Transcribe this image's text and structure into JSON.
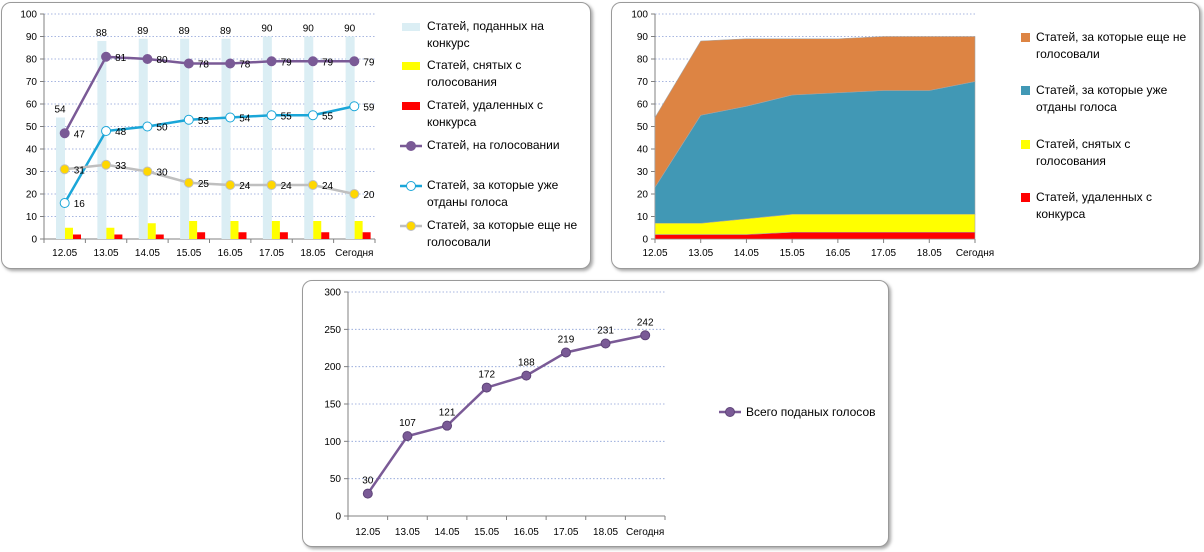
{
  "chart_data": [
    {
      "type": "bar",
      "categories": [
        "12.05",
        "13.05",
        "14.05",
        "15.05",
        "16.05",
        "17.05",
        "18.05",
        "Сегодня"
      ],
      "ylim": [
        0,
        100
      ],
      "yticks": [
        0,
        10,
        20,
        30,
        40,
        50,
        60,
        70,
        80,
        90,
        100
      ],
      "grid": true,
      "legend_position": "right",
      "series": [
        {
          "name": "Статей, поданных на конкурс",
          "kind": "bar",
          "color": "#dbeef4",
          "values": [
            54,
            88,
            89,
            89,
            89,
            90,
            90,
            90
          ],
          "labels": true
        },
        {
          "name": "Статей, снятых с голосования",
          "kind": "bar",
          "color": "#ffff00",
          "values": [
            5,
            5,
            7,
            8,
            8,
            8,
            8,
            8
          ],
          "labels": false
        },
        {
          "name": "Статей, удаленных с конкурса",
          "kind": "bar",
          "color": "#ff0000",
          "values": [
            2,
            2,
            2,
            3,
            3,
            3,
            3,
            3
          ],
          "labels": false
        },
        {
          "name": "Статей, на голосовании",
          "kind": "line",
          "color": "#7a5a96",
          "marker_fill": "#7a5a96",
          "values": [
            47,
            81,
            80,
            78,
            78,
            79,
            79,
            79
          ],
          "labels": true
        },
        {
          "name": "Статей, за которые уже отданы голоса",
          "kind": "line",
          "color": "#1aa6d8",
          "marker_fill": "#ffffff",
          "values": [
            16,
            48,
            50,
            53,
            54,
            55,
            55,
            59
          ],
          "labels": true
        },
        {
          "name": "Статей, за которые еще не голосовали",
          "kind": "line",
          "color": "#bfbfbf",
          "marker_fill": "#ffd700",
          "values": [
            31,
            33,
            30,
            25,
            24,
            24,
            24,
            20
          ],
          "labels": true
        }
      ]
    },
    {
      "type": "area",
      "stacked": true,
      "categories": [
        "12.05",
        "13.05",
        "14.05",
        "15.05",
        "16.05",
        "17.05",
        "18.05",
        "Сегодня"
      ],
      "ylim": [
        0,
        100
      ],
      "yticks": [
        0,
        10,
        20,
        30,
        40,
        50,
        60,
        70,
        80,
        90,
        100
      ],
      "grid": true,
      "legend_position": "right",
      "series": [
        {
          "name": "Статей, удаленных с конкурса",
          "color": "#ff0000",
          "values": [
            2,
            2,
            2,
            3,
            3,
            3,
            3,
            3
          ]
        },
        {
          "name": "Статей, снятых с голосования",
          "color": "#ffff00",
          "values": [
            5,
            5,
            7,
            8,
            8,
            8,
            8,
            8
          ]
        },
        {
          "name": "Статей, за которые уже отданы голоса",
          "color": "#4198b5",
          "values": [
            16,
            48,
            50,
            53,
            54,
            55,
            55,
            59
          ]
        },
        {
          "name": "Статей, за которые еще не голосовали",
          "color": "#dd8443",
          "values": [
            31,
            33,
            30,
            25,
            24,
            24,
            24,
            20
          ]
        }
      ],
      "legend_order": [
        3,
        2,
        1,
        0
      ]
    },
    {
      "type": "line",
      "categories": [
        "12.05",
        "13.05",
        "14.05",
        "15.05",
        "16.05",
        "17.05",
        "18.05",
        "Сегодня"
      ],
      "ylim": [
        0,
        300
      ],
      "yticks": [
        0,
        50,
        100,
        150,
        200,
        250,
        300
      ],
      "grid": true,
      "legend_position": "right",
      "series": [
        {
          "name": "Всего поданых голосов",
          "color": "#7a5a96",
          "values": [
            30,
            107,
            121,
            172,
            188,
            219,
            231,
            242
          ]
        }
      ]
    }
  ]
}
